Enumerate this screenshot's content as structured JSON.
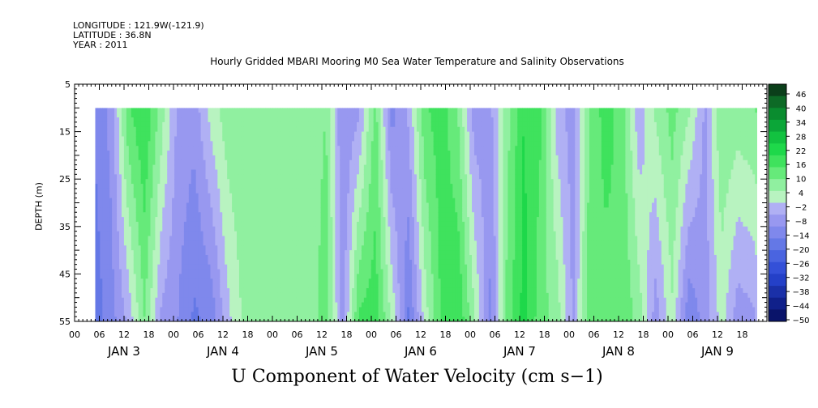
{
  "header": {
    "longitude": "LONGITUDE : 121.9W(-121.9)",
    "latitude": "LATITUDE : 36.8N",
    "year": "YEAR : 2011"
  },
  "chart_data": {
    "type": "heatmap",
    "title": "Hourly Gridded MBARI Mooring M0 Sea Water Temperature and Salinity Observations",
    "ylabel": "DEPTH (m)",
    "caption": "U Component of Water Velocity (cm s−1)",
    "y_ticks": [
      "5",
      "15",
      "25",
      "35",
      "45",
      "55"
    ],
    "y_range": [
      5,
      55
    ],
    "x_range_hours": [
      0,
      168
    ],
    "x_hour_labels": [
      "00",
      "06",
      "12",
      "18"
    ],
    "x_day_labels": [
      "JAN  3",
      "JAN  4",
      "JAN  5",
      "JAN  6",
      "JAN  7",
      "JAN  8",
      "JAN  9"
    ],
    "data_start_hour": 5,
    "data_top_depth": 10,
    "colorbar": {
      "labels": [
        "46",
        "40",
        "34",
        "28",
        "22",
        "16",
        "10",
        "4",
        "−2",
        "−8",
        "−14",
        "−20",
        "−26",
        "−32",
        "−38",
        "−44",
        "−50"
      ],
      "range": [
        -50,
        50
      ],
      "colors_top_to_bottom": [
        "#0b3f1a",
        "#0d6a26",
        "#0a8c2f",
        "#0ba638",
        "#12c240",
        "#1ed84a",
        "#3fe25d",
        "#66ea7a",
        "#90f0a0",
        "#b8f3c0",
        "#b0b0f4",
        "#9898f0",
        "#7f88ec",
        "#6478e6",
        "#4a64e0",
        "#3450d8",
        "#2440c8",
        "#1a30a8",
        "#10208a",
        "#0a146a"
      ]
    },
    "columns": [
      {
        "t": 5,
        "s": -14,
        "b": -18
      },
      {
        "t": 9,
        "s": -8,
        "b": -12
      },
      {
        "t": 13,
        "s": 14,
        "b": -4
      },
      {
        "t": 17,
        "s": 20,
        "b": 10
      },
      {
        "t": 21,
        "s": 8,
        "b": -6
      },
      {
        "t": 25,
        "s": -6,
        "b": -10
      },
      {
        "t": 29,
        "s": -8,
        "b": -16
      },
      {
        "t": 33,
        "s": 2,
        "b": -14
      },
      {
        "t": 37,
        "s": 8,
        "b": -2
      },
      {
        "t": 41,
        "s": 10,
        "b": 6
      },
      {
        "t": 45,
        "s": 8,
        "b": 10
      },
      {
        "t": 49,
        "s": 6,
        "b": 8
      },
      {
        "t": 53,
        "s": 6,
        "b": 8
      },
      {
        "t": 57,
        "s": 6,
        "b": 6
      },
      {
        "t": 61,
        "s": 10,
        "b": 14
      },
      {
        "t": 65,
        "s": -10,
        "b": -8
      },
      {
        "t": 69,
        "s": -6,
        "b": 16
      },
      {
        "t": 73,
        "s": 12,
        "b": 18
      },
      {
        "t": 77,
        "s": -12,
        "b": 4
      },
      {
        "t": 81,
        "s": -4,
        "b": -16
      },
      {
        "t": 85,
        "s": 14,
        "b": 2
      },
      {
        "t": 89,
        "s": 18,
        "b": 16
      },
      {
        "t": 93,
        "s": 10,
        "b": 20
      },
      {
        "t": 97,
        "s": -8,
        "b": 6
      },
      {
        "t": 101,
        "s": -6,
        "b": -12
      },
      {
        "t": 105,
        "s": 8,
        "b": 12
      },
      {
        "t": 109,
        "s": 20,
        "b": 22
      },
      {
        "t": 113,
        "s": 16,
        "b": 12
      },
      {
        "t": 117,
        "s": -2,
        "b": 8
      },
      {
        "t": 121,
        "s": -8,
        "b": -6
      },
      {
        "t": 125,
        "s": 10,
        "b": 14
      },
      {
        "t": 129,
        "s": 18,
        "b": 12
      },
      {
        "t": 133,
        "s": 12,
        "b": 14
      },
      {
        "t": 137,
        "s": -4,
        "b": 8
      },
      {
        "t": 141,
        "s": 6,
        "b": -8
      },
      {
        "t": 145,
        "s": 12,
        "b": 4
      },
      {
        "t": 149,
        "s": 6,
        "b": -14
      },
      {
        "t": 153,
        "s": -6,
        "b": -8
      },
      {
        "t": 157,
        "s": 10,
        "b": 2
      },
      {
        "t": 161,
        "s": 8,
        "b": -8
      },
      {
        "t": 165,
        "s": 10,
        "b": -6
      },
      {
        "t": 168,
        "s": 12,
        "b": 4
      }
    ]
  }
}
